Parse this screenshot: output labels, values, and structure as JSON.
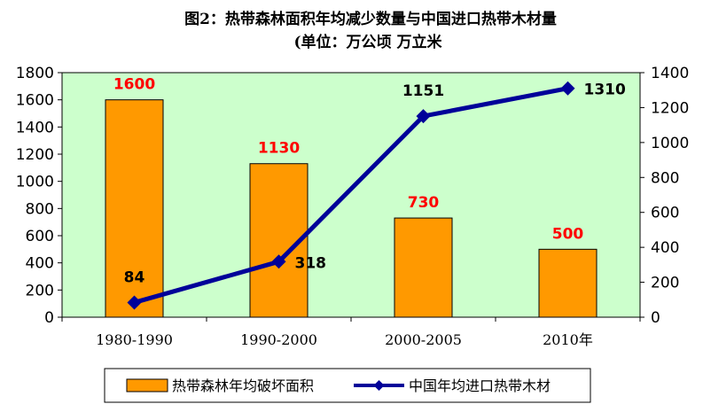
{
  "chart_data": {
    "type": "bar",
    "title_line1": "图2：热带森林面积年均减少数量与中国进口热带木材量",
    "title_line2": "(单位：万公顷 万立米",
    "categories": [
      "1980-1990",
      "1990-2000",
      "2000-2005",
      "2010年"
    ],
    "series": [
      {
        "name": "热带森林年均破坏面积",
        "type": "bar",
        "axis": "left",
        "color": "#FF9900",
        "label_color": "#FF0000",
        "values": [
          1600,
          1130,
          730,
          500
        ]
      },
      {
        "name": "中国年均进口热带木材",
        "type": "line",
        "axis": "right",
        "color": "#000099",
        "marker": "diamond",
        "values": [
          84,
          318,
          1151,
          1310
        ]
      }
    ],
    "y_left": {
      "min": 0,
      "max": 1800,
      "step": 200,
      "ticks": [
        "0",
        "200",
        "400",
        "600",
        "800",
        "1000",
        "1200",
        "1400",
        "1600",
        "1800"
      ]
    },
    "y_right": {
      "min": 0,
      "max": 1400,
      "step": 200,
      "ticks": [
        "0",
        "200",
        "400",
        "600",
        "800",
        "1000",
        "1200",
        "1400"
      ]
    },
    "plot_background": "#CCFFCC",
    "legend_position": "bottom",
    "grid": false
  }
}
